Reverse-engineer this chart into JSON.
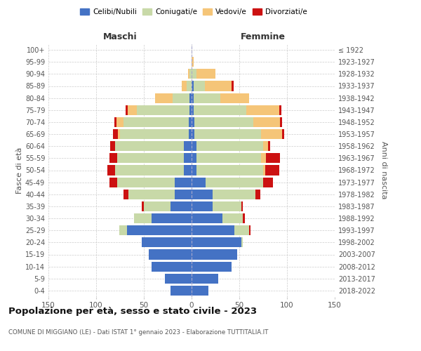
{
  "age_groups": [
    "0-4",
    "5-9",
    "10-14",
    "15-19",
    "20-24",
    "25-29",
    "30-34",
    "35-39",
    "40-44",
    "45-49",
    "50-54",
    "55-59",
    "60-64",
    "65-69",
    "70-74",
    "75-79",
    "80-84",
    "85-89",
    "90-94",
    "95-99",
    "100+"
  ],
  "birth_years": [
    "2018-2022",
    "2013-2017",
    "2008-2012",
    "2003-2007",
    "1998-2002",
    "1993-1997",
    "1988-1992",
    "1983-1987",
    "1978-1982",
    "1973-1977",
    "1968-1972",
    "1963-1967",
    "1958-1962",
    "1953-1957",
    "1948-1952",
    "1943-1947",
    "1938-1942",
    "1933-1937",
    "1928-1932",
    "1923-1927",
    "≤ 1922"
  ],
  "maschi": {
    "celibi": [
      22,
      28,
      42,
      45,
      52,
      68,
      42,
      22,
      18,
      18,
      8,
      8,
      8,
      3,
      3,
      2,
      2,
      0,
      0,
      0,
      0
    ],
    "coniugati": [
      0,
      0,
      0,
      0,
      0,
      8,
      18,
      28,
      48,
      60,
      72,
      70,
      72,
      72,
      68,
      55,
      18,
      5,
      2,
      0,
      0
    ],
    "vedovi": [
      0,
      0,
      0,
      0,
      0,
      0,
      0,
      0,
      0,
      0,
      0,
      0,
      0,
      2,
      8,
      10,
      18,
      5,
      2,
      0,
      0
    ],
    "divorziati": [
      0,
      0,
      0,
      0,
      0,
      0,
      0,
      2,
      5,
      8,
      8,
      8,
      5,
      5,
      2,
      2,
      0,
      0,
      0,
      0,
      0
    ]
  },
  "femmine": {
    "nubili": [
      18,
      28,
      42,
      48,
      52,
      45,
      32,
      22,
      22,
      15,
      5,
      5,
      5,
      3,
      3,
      2,
      2,
      2,
      0,
      0,
      0
    ],
    "coniugate": [
      0,
      0,
      0,
      0,
      2,
      15,
      22,
      30,
      45,
      60,
      70,
      68,
      70,
      70,
      62,
      55,
      28,
      12,
      5,
      0,
      0
    ],
    "vedove": [
      0,
      0,
      0,
      0,
      0,
      0,
      0,
      0,
      0,
      0,
      2,
      5,
      5,
      22,
      28,
      35,
      30,
      28,
      20,
      2,
      0
    ],
    "divorziate": [
      0,
      0,
      0,
      0,
      0,
      2,
      2,
      2,
      5,
      10,
      15,
      15,
      2,
      2,
      2,
      2,
      0,
      2,
      0,
      0,
      0
    ]
  },
  "colors": {
    "celibi": "#4472c4",
    "coniugati": "#c8d9a8",
    "vedovi": "#f5c578",
    "divorziati": "#cc1111"
  },
  "xlim": 150,
  "title": "Popolazione per età, sesso e stato civile - 2023",
  "subtitle": "COMUNE DI MIGGIANO (LE) - Dati ISTAT 1° gennaio 2023 - Elaborazione TUTTITALIA.IT",
  "ylabel_left": "Fasce di età",
  "ylabel_right": "Anni di nascita",
  "xlabel_left": "Maschi",
  "xlabel_right": "Femmine"
}
